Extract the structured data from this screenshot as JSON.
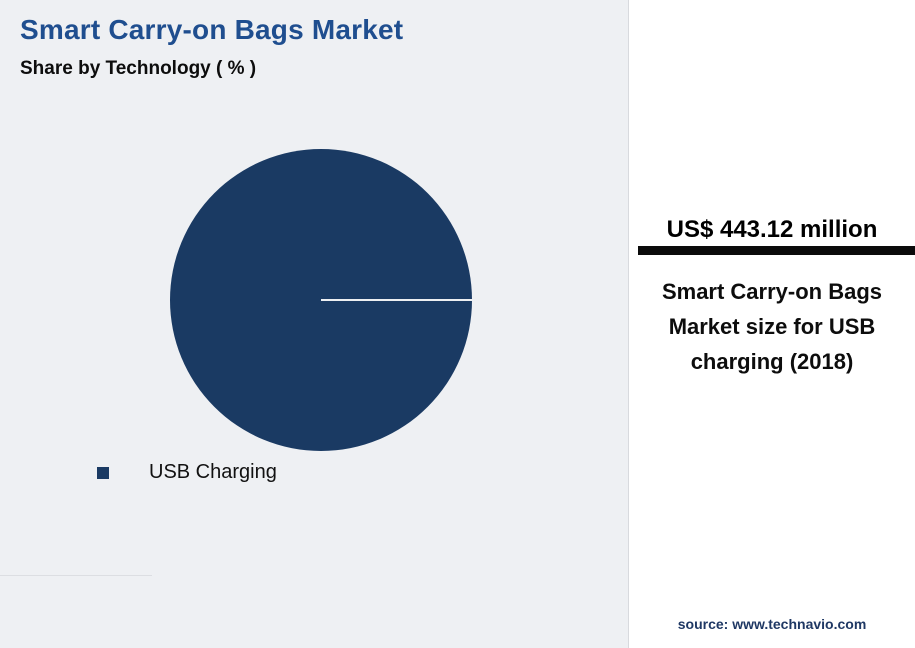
{
  "header": {
    "title": "Smart Carry-on Bags Market",
    "subtitle": "Share by Technology ( % )"
  },
  "chart_data": {
    "type": "pie",
    "title": "Smart Carry-on Bags Market",
    "subtitle": "Share by Technology ( % )",
    "slices": [
      {
        "label": "USB Charging",
        "value": 100,
        "color": "#1a3a63"
      }
    ],
    "legend_position": "bottom-left"
  },
  "panel": {
    "headline": "US$ 443.12 million",
    "description": "Smart Carry-on Bags Market size for USB charging (2018)",
    "source": "source: www.technavio.com"
  },
  "colors": {
    "title_blue": "#1f4e8f",
    "pie_navy": "#1a3a63",
    "background": "#eef0f3",
    "panel_background": "#ffffff",
    "headline_bar": "#0b0b0b",
    "source_text": "#1f3864"
  }
}
